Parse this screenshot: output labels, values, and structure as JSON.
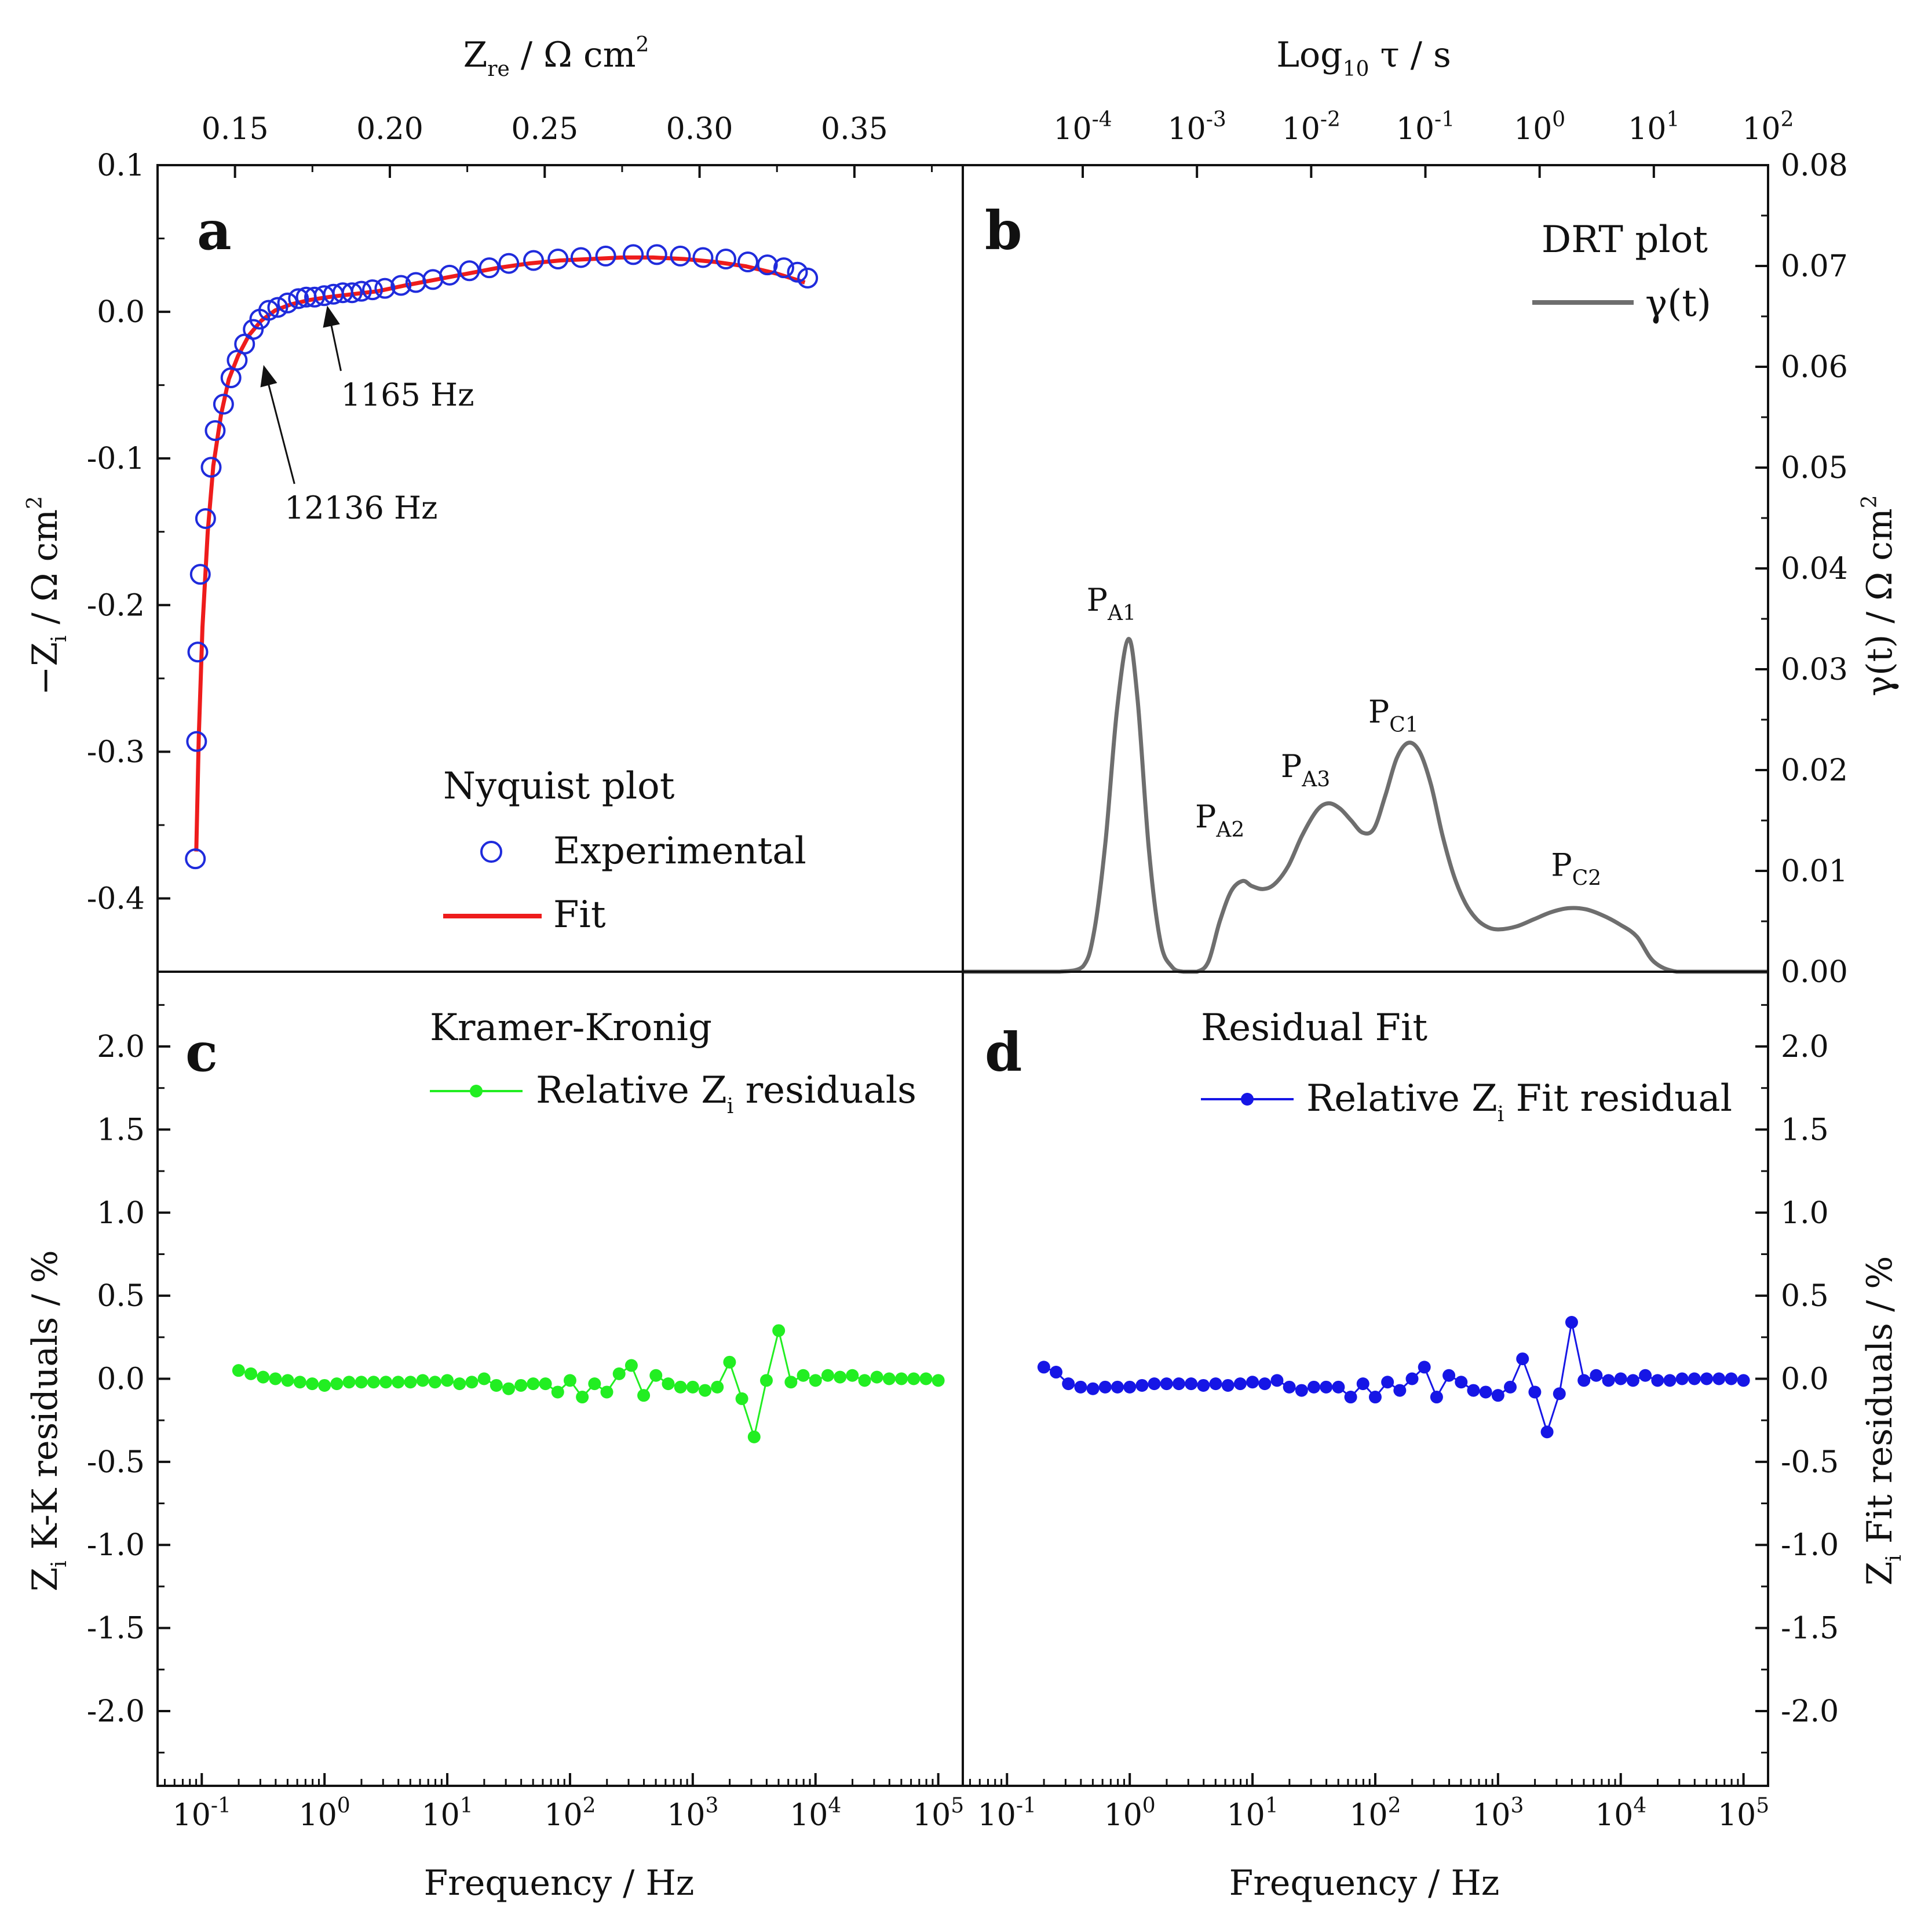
{
  "colors": {
    "experimental": "#1f2bdc",
    "fit": "#ee1c1c",
    "drt": "#6e6e6e",
    "kk": "#22ee22",
    "fitres": "#1616e6",
    "axis": "#111111"
  },
  "chart_data": [
    {
      "panel": "a",
      "type": "scatter",
      "title": "Nyquist plot",
      "xlabel": "Z_re / Ω cm²",
      "xlabel_main": "Z",
      "xlabel_sub": "re",
      "xlabel_rest": " / Ω cm",
      "xlabel_sup": "2",
      "ylabel_main": "−Z",
      "ylabel_sub": "i",
      "ylabel_rest": " / Ω cm",
      "ylabel_sup": "2",
      "xlim": [
        0.125,
        0.385
      ],
      "ylim": [
        -0.45,
        0.1
      ],
      "xticks": [
        "0.15",
        "0.20",
        "0.25",
        "0.30",
        "0.35"
      ],
      "xtick_values": [
        0.15,
        0.2,
        0.25,
        0.3,
        0.35
      ],
      "yticks": [
        "0.1",
        "0.0",
        "-0.1",
        "-0.2",
        "-0.3",
        "-0.4"
      ],
      "ytick_values": [
        0.1,
        0.0,
        -0.1,
        -0.2,
        -0.3,
        -0.4
      ],
      "legend": {
        "title": "Nyquist plot",
        "experimental": "Experimental",
        "fit": "Fit"
      },
      "series": [
        {
          "name": "Experimental",
          "x": [
            0.1372,
            0.1376,
            0.138,
            0.1388,
            0.1405,
            0.1423,
            0.1436,
            0.1463,
            0.1487,
            0.1507,
            0.1531,
            0.1559,
            0.158,
            0.1609,
            0.1638,
            0.167,
            0.1705,
            0.173,
            0.1757,
            0.1788,
            0.1818,
            0.1848,
            0.1878,
            0.1908,
            0.1944,
            0.1984,
            0.2036,
            0.2084,
            0.2139,
            0.2193,
            0.2257,
            0.2321,
            0.2384,
            0.2464,
            0.2543,
            0.2617,
            0.2697,
            0.2786,
            0.2862,
            0.2938,
            0.3011,
            0.3085,
            0.3156,
            0.3219,
            0.3272,
            0.3316,
            0.3349
          ],
          "y": [
            -0.373,
            -0.293,
            -0.232,
            -0.179,
            -0.141,
            -0.106,
            -0.081,
            -0.063,
            -0.045,
            -0.033,
            -0.022,
            -0.012,
            -0.005,
            0.001,
            0.003,
            0.006,
            0.009,
            0.01,
            0.01,
            0.011,
            0.012,
            0.013,
            0.013,
            0.014,
            0.015,
            0.016,
            0.018,
            0.02,
            0.022,
            0.025,
            0.028,
            0.03,
            0.033,
            0.035,
            0.036,
            0.037,
            0.038,
            0.039,
            0.039,
            0.038,
            0.037,
            0.036,
            0.034,
            0.032,
            0.03,
            0.027,
            0.023
          ]
        },
        {
          "name": "Fit",
          "x": [
            0.1375,
            0.1383,
            0.1395,
            0.1412,
            0.143,
            0.1455,
            0.148,
            0.151,
            0.1545,
            0.1585,
            0.163,
            0.168,
            0.174,
            0.18,
            0.188,
            0.196,
            0.205,
            0.215,
            0.225,
            0.235,
            0.245,
            0.255,
            0.265,
            0.275,
            0.285,
            0.295,
            0.305,
            0.315,
            0.325,
            0.334
          ],
          "y": [
            -0.368,
            -0.29,
            -0.215,
            -0.15,
            -0.105,
            -0.07,
            -0.046,
            -0.03,
            -0.016,
            -0.006,
            0.001,
            0.005,
            0.008,
            0.01,
            0.012,
            0.014,
            0.018,
            0.022,
            0.026,
            0.03,
            0.033,
            0.035,
            0.036,
            0.037,
            0.037,
            0.036,
            0.034,
            0.031,
            0.026,
            0.02
          ]
        }
      ],
      "annotations": [
        {
          "label": "12136 Hz",
          "point": [
            0.158,
            -0.037
          ],
          "text_at": [
            0.172,
            -0.141
          ]
        },
        {
          "label": "1165 Hz",
          "point": [
            0.1785,
            0.0035
          ],
          "text_at": [
            0.187,
            -0.064
          ]
        }
      ]
    },
    {
      "panel": "b",
      "type": "line",
      "title": "DRT plot",
      "xlabel": "Log10 τ / s",
      "xlabel_main": "Log",
      "xlabel_sub": "10",
      "xlabel_rest": " τ / s",
      "ylabel": "γ(t) / Ω cm²",
      "ylabel_main": "γ(t) / Ω cm",
      "ylabel_sup": "2",
      "xlim_log10": [
        -5.05,
        2.0
      ],
      "ylim": [
        0.0,
        0.08
      ],
      "xticks": [
        {
          "base": "10",
          "exp": "-4"
        },
        {
          "base": "10",
          "exp": "-3"
        },
        {
          "base": "10",
          "exp": "-2"
        },
        {
          "base": "10",
          "exp": "-1"
        },
        {
          "base": "10",
          "exp": "0"
        },
        {
          "base": "10",
          "exp": "1"
        },
        {
          "base": "10",
          "exp": "2"
        }
      ],
      "xtick_values_log10": [
        -4,
        -3,
        -2,
        -1,
        0,
        1,
        2
      ],
      "yticks": [
        "0.08",
        "0.07",
        "0.06",
        "0.05",
        "0.04",
        "0.03",
        "0.02",
        "0.01",
        "0.00"
      ],
      "ytick_values": [
        0.08,
        0.07,
        0.06,
        0.05,
        0.04,
        0.03,
        0.02,
        0.01,
        0.0
      ],
      "legend": {
        "title": "DRT plot",
        "series": "γ(t)"
      },
      "series": [
        {
          "name": "γ(t)",
          "x_log10": [
            -5.05,
            -4.7,
            -4.4,
            -4.2,
            -4.0,
            -3.9,
            -3.8,
            -3.7,
            -3.6,
            -3.52,
            -3.42,
            -3.32,
            -3.22,
            -3.12,
            -3.0,
            -2.9,
            -2.8,
            -2.7,
            -2.6,
            -2.52,
            -2.42,
            -2.32,
            -2.2,
            -2.08,
            -1.95,
            -1.85,
            -1.75,
            -1.65,
            -1.55,
            -1.45,
            -1.35,
            -1.25,
            -1.15,
            -1.05,
            -0.95,
            -0.85,
            -0.75,
            -0.65,
            -0.55,
            -0.45,
            -0.35,
            -0.2,
            -0.05,
            0.1,
            0.25,
            0.4,
            0.55,
            0.7,
            0.85,
            1.0,
            1.2,
            1.5,
            2.0
          ],
          "y": [
            0.0,
            0.0,
            0.0,
            0.0,
            0.0005,
            0.004,
            0.013,
            0.026,
            0.033,
            0.027,
            0.012,
            0.003,
            0.0005,
            0.0,
            0.0,
            0.001,
            0.005,
            0.008,
            0.009,
            0.0085,
            0.0082,
            0.0087,
            0.0105,
            0.0135,
            0.016,
            0.0167,
            0.0162,
            0.015,
            0.0138,
            0.0142,
            0.0175,
            0.0212,
            0.0227,
            0.0218,
            0.0185,
            0.0135,
            0.0095,
            0.0068,
            0.0052,
            0.0044,
            0.0042,
            0.0045,
            0.0052,
            0.0059,
            0.0063,
            0.0062,
            0.0056,
            0.0047,
            0.0035,
            0.001,
            0.0,
            0.0,
            0.0
          ]
        }
      ],
      "peak_labels": [
        {
          "main": "P",
          "sub": "A1",
          "at": [
            -3.75,
            0.0358
          ]
        },
        {
          "main": "P",
          "sub": "A2",
          "at": [
            -2.8,
            0.0143
          ]
        },
        {
          "main": "P",
          "sub": "A3",
          "at": [
            -2.05,
            0.0193
          ]
        },
        {
          "main": "P",
          "sub": "C1",
          "at": [
            -1.28,
            0.0247
          ]
        },
        {
          "main": "P",
          "sub": "C2",
          "at": [
            0.32,
            0.0095
          ]
        }
      ]
    },
    {
      "panel": "c",
      "type": "line",
      "title": "Kramer-Kronig",
      "xlabel": "Frequency / Hz",
      "ylabel_main": "Z",
      "ylabel_sub": "i",
      "ylabel_rest": " K-K residuals / %",
      "xlim_log10": [
        -1.36,
        5.2
      ],
      "ylim": [
        -2.45,
        2.45
      ],
      "xticks": [
        {
          "base": "10",
          "exp": "-1"
        },
        {
          "base": "10",
          "exp": "0"
        },
        {
          "base": "10",
          "exp": "1"
        },
        {
          "base": "10",
          "exp": "2"
        },
        {
          "base": "10",
          "exp": "3"
        },
        {
          "base": "10",
          "exp": "4"
        },
        {
          "base": "10",
          "exp": "5"
        }
      ],
      "xtick_values_log10": [
        -1,
        0,
        1,
        2,
        3,
        4,
        5
      ],
      "yticks": [
        "2.0",
        "1.5",
        "1.0",
        "0.5",
        "0.0",
        "-0.5",
        "-1.0",
        "-1.5",
        "-2.0"
      ],
      "ytick_values": [
        2.0,
        1.5,
        1.0,
        0.5,
        0.0,
        -0.5,
        -1.0,
        -1.5,
        -2.0
      ],
      "legend": {
        "title": "Kramer-Kronig",
        "main": "Relative Z",
        "sub": "i",
        "rest": " residuals"
      },
      "series": [
        {
          "name": "Relative Zi residuals",
          "x_log10": [
            -0.7,
            -0.6,
            -0.5,
            -0.4,
            -0.3,
            -0.2,
            -0.1,
            0.0,
            0.1,
            0.2,
            0.3,
            0.4,
            0.5,
            0.6,
            0.7,
            0.8,
            0.9,
            1.0,
            1.1,
            1.2,
            1.3,
            1.4,
            1.5,
            1.6,
            1.7,
            1.8,
            1.9,
            2.0,
            2.1,
            2.2,
            2.3,
            2.4,
            2.5,
            2.6,
            2.7,
            2.8,
            2.9,
            3.0,
            3.1,
            3.2,
            3.3,
            3.4,
            3.5,
            3.6,
            3.7,
            3.8,
            3.9,
            4.0,
            4.1,
            4.2,
            4.3,
            4.4,
            4.5,
            4.6,
            4.7,
            4.8,
            4.9,
            5.0
          ],
          "y": [
            0.05,
            0.03,
            0.01,
            0.0,
            -0.01,
            -0.02,
            -0.03,
            -0.04,
            -0.03,
            -0.02,
            -0.02,
            -0.02,
            -0.02,
            -0.02,
            -0.02,
            -0.01,
            -0.02,
            -0.01,
            -0.03,
            -0.02,
            0.0,
            -0.04,
            -0.06,
            -0.04,
            -0.03,
            -0.03,
            -0.08,
            -0.01,
            -0.11,
            -0.03,
            -0.08,
            0.03,
            0.08,
            -0.1,
            0.02,
            -0.03,
            -0.05,
            -0.05,
            -0.07,
            -0.05,
            0.1,
            -0.12,
            -0.35,
            -0.01,
            0.29,
            -0.02,
            0.02,
            -0.01,
            0.02,
            0.01,
            0.02,
            -0.01,
            0.01,
            0.0,
            0.0,
            0.0,
            0.0,
            -0.01
          ]
        }
      ]
    },
    {
      "panel": "d",
      "type": "line",
      "title": "Residual Fit",
      "xlabel": "Frequency / Hz",
      "ylabel_main": "Z",
      "ylabel_sub": "i",
      "ylabel_rest": " Fit residuals / %",
      "xlim_log10": [
        -1.36,
        5.2
      ],
      "ylim": [
        -2.45,
        2.45
      ],
      "xticks": [
        {
          "base": "10",
          "exp": "-1"
        },
        {
          "base": "10",
          "exp": "0"
        },
        {
          "base": "10",
          "exp": "1"
        },
        {
          "base": "10",
          "exp": "2"
        },
        {
          "base": "10",
          "exp": "3"
        },
        {
          "base": "10",
          "exp": "4"
        },
        {
          "base": "10",
          "exp": "5"
        }
      ],
      "xtick_values_log10": [
        -1,
        0,
        1,
        2,
        3,
        4,
        5
      ],
      "yticks": [
        "2.0",
        "1.5",
        "1.0",
        "0.5",
        "0.0",
        "-0.5",
        "-1.0",
        "-1.5",
        "-2.0"
      ],
      "ytick_values": [
        2.0,
        1.5,
        1.0,
        0.5,
        0.0,
        -0.5,
        -1.0,
        -1.5,
        -2.0
      ],
      "legend": {
        "title": "Residual Fit",
        "main": "Relative Z",
        "sub": "i",
        "rest": " Fit residual"
      },
      "series": [
        {
          "name": "Relative Zi Fit residual",
          "x_log10": [
            -0.7,
            -0.6,
            -0.5,
            -0.4,
            -0.3,
            -0.2,
            -0.1,
            0.0,
            0.1,
            0.2,
            0.3,
            0.4,
            0.5,
            0.6,
            0.7,
            0.8,
            0.9,
            1.0,
            1.1,
            1.2,
            1.3,
            1.4,
            1.5,
            1.6,
            1.7,
            1.8,
            1.9,
            2.0,
            2.1,
            2.2,
            2.3,
            2.4,
            2.5,
            2.6,
            2.7,
            2.8,
            2.9,
            3.0,
            3.1,
            3.2,
            3.3,
            3.4,
            3.5,
            3.6,
            3.7,
            3.8,
            3.9,
            4.0,
            4.1,
            4.2,
            4.3,
            4.4,
            4.5,
            4.6,
            4.7,
            4.8,
            4.9,
            5.0
          ],
          "y": [
            0.07,
            0.04,
            -0.03,
            -0.05,
            -0.06,
            -0.05,
            -0.05,
            -0.05,
            -0.04,
            -0.03,
            -0.03,
            -0.03,
            -0.03,
            -0.04,
            -0.03,
            -0.04,
            -0.03,
            -0.02,
            -0.03,
            -0.01,
            -0.05,
            -0.07,
            -0.05,
            -0.05,
            -0.05,
            -0.11,
            -0.03,
            -0.11,
            -0.02,
            -0.07,
            0.0,
            0.07,
            -0.11,
            0.02,
            -0.02,
            -0.07,
            -0.08,
            -0.1,
            -0.05,
            0.12,
            -0.08,
            -0.32,
            -0.09,
            0.34,
            -0.01,
            0.02,
            -0.01,
            0.0,
            -0.01,
            0.02,
            -0.01,
            -0.01,
            0.0,
            0.0,
            0.0,
            0.0,
            0.0,
            -0.01
          ]
        }
      ]
    }
  ]
}
